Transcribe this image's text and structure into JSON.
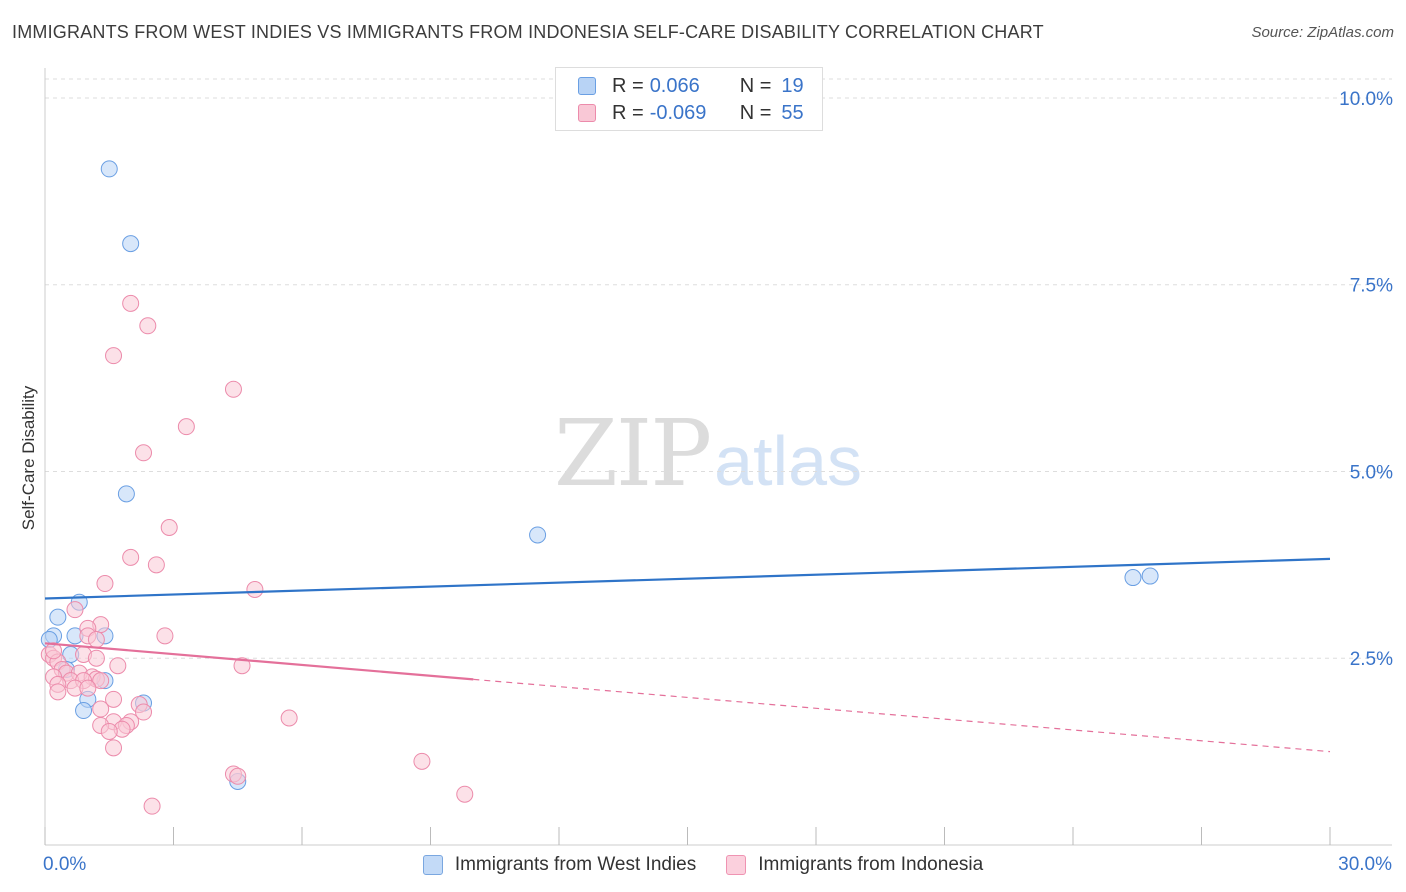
{
  "title": "IMMIGRANTS FROM WEST INDIES VS IMMIGRANTS FROM INDONESIA SELF-CARE DISABILITY CORRELATION CHART",
  "source": "Source: ZipAtlas.com",
  "watermark": {
    "zip": "ZIP",
    "atlas": "atlas"
  },
  "legend": {
    "r_label": "R =",
    "n_label": "N =",
    "series": [
      {
        "r": "0.066",
        "n": "19"
      },
      {
        "r": "-0.069",
        "n": "55"
      }
    ]
  },
  "colors": {
    "blue_fill": "#b8d3f5",
    "blue_stroke": "#6a9fe3",
    "blue_line": "#2f74c8",
    "pink_fill": "#f9c8d6",
    "pink_stroke": "#ec8bab",
    "pink_line": "#e4709a",
    "tick_color": "#3a74c9",
    "grid": "#dddddd"
  },
  "chart_data": {
    "type": "scatter",
    "title": "IMMIGRANTS FROM WEST INDIES VS IMMIGRANTS FROM INDONESIA SELF-CARE DISABILITY CORRELATION CHART",
    "xlabel": "",
    "ylabel": "Self-Care Disability",
    "xlim": [
      0,
      30
    ],
    "ylim": [
      0,
      10.2
    ],
    "x_tick_labels": [
      {
        "value": 0,
        "label": "0.0%"
      },
      {
        "value": 30,
        "label": "30.0%"
      }
    ],
    "y_tick_labels": [
      {
        "value": 2.5,
        "label": "2.5%"
      },
      {
        "value": 5.0,
        "label": "5.0%"
      },
      {
        "value": 7.5,
        "label": "7.5%"
      },
      {
        "value": 10.0,
        "label": "10.0%"
      }
    ],
    "series": [
      {
        "name": "Immigrants from West Indies",
        "color": "blue",
        "points": [
          [
            1.5,
            9.05
          ],
          [
            2.0,
            8.05
          ],
          [
            1.9,
            4.7
          ],
          [
            11.5,
            4.15
          ],
          [
            25.8,
            3.6
          ],
          [
            25.4,
            3.58
          ],
          [
            0.3,
            3.05
          ],
          [
            0.8,
            3.25
          ],
          [
            0.2,
            2.8
          ],
          [
            0.1,
            2.75
          ],
          [
            0.7,
            2.8
          ],
          [
            1.4,
            2.8
          ],
          [
            0.6,
            2.55
          ],
          [
            0.5,
            2.35
          ],
          [
            1.4,
            2.2
          ],
          [
            1.0,
            1.95
          ],
          [
            2.3,
            1.9
          ],
          [
            0.9,
            1.8
          ],
          [
            4.5,
            0.85
          ]
        ],
        "trend": {
          "x0": 0,
          "y0": 3.3,
          "x1": 30,
          "y1": 3.83,
          "dashed_from": null
        }
      },
      {
        "name": "Immigrants from Indonesia",
        "color": "pink",
        "points": [
          [
            2.0,
            7.25
          ],
          [
            2.4,
            6.95
          ],
          [
            1.6,
            6.55
          ],
          [
            4.4,
            6.1
          ],
          [
            3.3,
            5.6
          ],
          [
            2.3,
            5.25
          ],
          [
            2.9,
            4.25
          ],
          [
            2.0,
            3.85
          ],
          [
            2.6,
            3.75
          ],
          [
            1.4,
            3.5
          ],
          [
            4.9,
            3.42
          ],
          [
            0.7,
            3.15
          ],
          [
            1.3,
            2.95
          ],
          [
            1.0,
            2.9
          ],
          [
            2.8,
            2.8
          ],
          [
            1.0,
            2.8
          ],
          [
            1.2,
            2.75
          ],
          [
            0.1,
            2.55
          ],
          [
            0.2,
            2.5
          ],
          [
            0.9,
            2.55
          ],
          [
            1.2,
            2.5
          ],
          [
            0.3,
            2.45
          ],
          [
            1.7,
            2.4
          ],
          [
            0.4,
            2.35
          ],
          [
            0.5,
            2.3
          ],
          [
            0.8,
            2.3
          ],
          [
            0.2,
            2.25
          ],
          [
            1.1,
            2.25
          ],
          [
            1.2,
            2.22
          ],
          [
            0.6,
            2.2
          ],
          [
            0.9,
            2.2
          ],
          [
            1.3,
            2.2
          ],
          [
            0.3,
            2.15
          ],
          [
            0.7,
            2.1
          ],
          [
            1.0,
            2.1
          ],
          [
            0.3,
            2.05
          ],
          [
            4.6,
            2.4
          ],
          [
            1.6,
            1.95
          ],
          [
            2.2,
            1.88
          ],
          [
            1.3,
            1.82
          ],
          [
            2.3,
            1.78
          ],
          [
            5.7,
            1.7
          ],
          [
            1.6,
            1.65
          ],
          [
            2.0,
            1.65
          ],
          [
            1.9,
            1.6
          ],
          [
            1.3,
            1.6
          ],
          [
            1.8,
            1.55
          ],
          [
            1.5,
            1.52
          ],
          [
            1.6,
            1.3
          ],
          [
            8.8,
            1.12
          ],
          [
            4.4,
            0.95
          ],
          [
            4.5,
            0.92
          ],
          [
            9.8,
            0.68
          ],
          [
            2.5,
            0.52
          ],
          [
            0.2,
            2.6
          ]
        ],
        "trend": {
          "x0": 0,
          "y0": 2.7,
          "x1": 30,
          "y1": 1.25,
          "dashed_from": 10
        }
      }
    ]
  }
}
